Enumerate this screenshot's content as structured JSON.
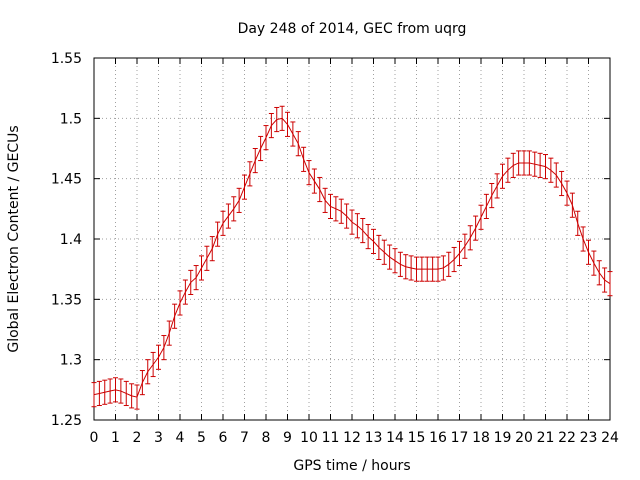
{
  "chart_data": {
    "type": "line",
    "title": "Day 248 of 2014, GEC from uqrg",
    "xlabel": "GPS time / hours",
    "ylabel": "Global Electron Content / GECUs",
    "xlim": [
      0,
      24
    ],
    "ylim": [
      1.25,
      1.55
    ],
    "x_ticks": [
      0,
      1,
      2,
      3,
      4,
      5,
      6,
      7,
      8,
      9,
      10,
      11,
      12,
      13,
      14,
      15,
      16,
      17,
      18,
      19,
      20,
      21,
      22,
      23,
      24
    ],
    "x_tick_labels": [
      "0",
      "1",
      "2",
      "3",
      "4",
      "5",
      "6",
      "7",
      "8",
      "9",
      "10",
      "11",
      "12",
      "13",
      "14",
      "15",
      "16",
      "17",
      "18",
      "19",
      "20",
      "21",
      "22",
      "23",
      "24"
    ],
    "y_ticks": [
      1.25,
      1.3,
      1.35,
      1.4,
      1.45,
      1.5,
      1.55
    ],
    "y_tick_labels": [
      "1.25",
      "1.3",
      "1.35",
      "1.4",
      "1.45",
      "1.5",
      "1.55"
    ],
    "grid": true,
    "error_bar": 0.01,
    "series": [
      {
        "color": "#cc0000",
        "x": [
          0,
          0.25,
          0.5,
          0.75,
          1,
          1.25,
          1.5,
          1.75,
          2,
          2.25,
          2.5,
          2.75,
          3,
          3.25,
          3.5,
          3.75,
          4,
          4.25,
          4.5,
          4.75,
          5,
          5.25,
          5.5,
          5.75,
          6,
          6.25,
          6.5,
          6.75,
          7,
          7.25,
          7.5,
          7.75,
          8,
          8.25,
          8.5,
          8.75,
          9,
          9.25,
          9.5,
          9.75,
          10,
          10.25,
          10.5,
          10.75,
          11,
          11.25,
          11.5,
          11.75,
          12,
          12.25,
          12.5,
          12.75,
          13,
          13.25,
          13.5,
          13.75,
          14,
          14.25,
          14.5,
          14.75,
          15,
          15.25,
          15.5,
          15.75,
          16,
          16.25,
          16.5,
          16.75,
          17,
          17.25,
          17.5,
          17.75,
          18,
          18.25,
          18.5,
          18.75,
          19,
          19.25,
          19.5,
          19.75,
          20,
          20.25,
          20.5,
          20.75,
          21,
          21.25,
          21.5,
          21.75,
          22,
          22.25,
          22.5,
          22.75,
          23,
          23.25,
          23.5,
          23.75,
          24
        ],
        "y": [
          1.271,
          1.272,
          1.273,
          1.274,
          1.275,
          1.274,
          1.272,
          1.27,
          1.269,
          1.281,
          1.29,
          1.296,
          1.302,
          1.31,
          1.322,
          1.336,
          1.347,
          1.356,
          1.364,
          1.368,
          1.376,
          1.384,
          1.392,
          1.404,
          1.413,
          1.419,
          1.425,
          1.432,
          1.443,
          1.454,
          1.465,
          1.475,
          1.484,
          1.494,
          1.499,
          1.5,
          1.495,
          1.487,
          1.479,
          1.466,
          1.455,
          1.448,
          1.441,
          1.432,
          1.427,
          1.425,
          1.423,
          1.419,
          1.414,
          1.411,
          1.407,
          1.402,
          1.398,
          1.393,
          1.389,
          1.385,
          1.382,
          1.379,
          1.377,
          1.376,
          1.375,
          1.375,
          1.375,
          1.375,
          1.375,
          1.376,
          1.379,
          1.383,
          1.388,
          1.394,
          1.401,
          1.409,
          1.418,
          1.427,
          1.436,
          1.444,
          1.452,
          1.457,
          1.461,
          1.463,
          1.463,
          1.463,
          1.462,
          1.461,
          1.46,
          1.457,
          1.453,
          1.446,
          1.438,
          1.428,
          1.413,
          1.4,
          1.389,
          1.38,
          1.372,
          1.366,
          1.363
        ]
      }
    ]
  }
}
